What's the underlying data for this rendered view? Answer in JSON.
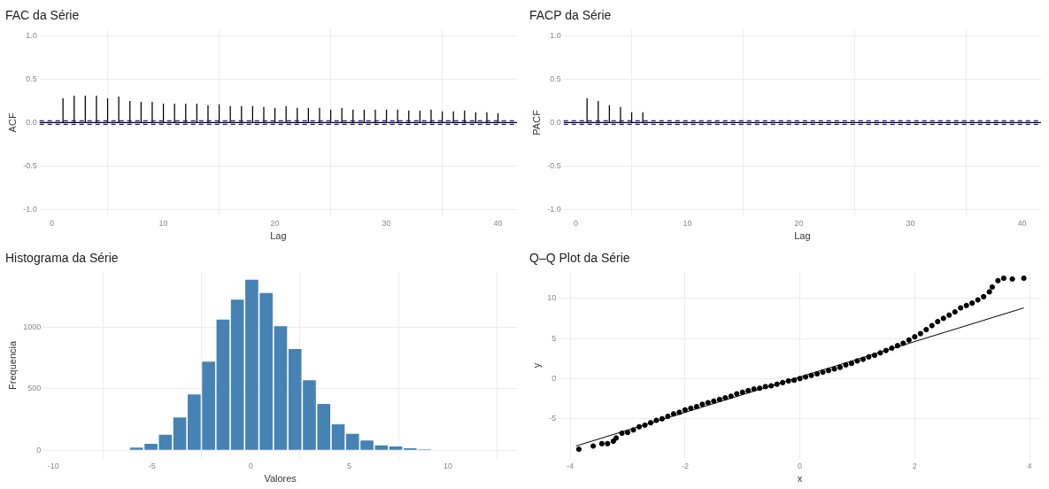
{
  "chart_data": [
    {
      "type": "bar",
      "title": "FAC da Série",
      "xlabel": "Lag",
      "ylabel": "ACF",
      "x": [
        1,
        2,
        3,
        4,
        5,
        6,
        7,
        8,
        9,
        10,
        11,
        12,
        13,
        14,
        15,
        16,
        17,
        18,
        19,
        20,
        21,
        22,
        23,
        24,
        25,
        26,
        27,
        28,
        29,
        30,
        31,
        32,
        33,
        34,
        35,
        36,
        37,
        38,
        39,
        40
      ],
      "values": [
        0.28,
        0.31,
        0.31,
        0.31,
        0.28,
        0.3,
        0.25,
        0.24,
        0.24,
        0.22,
        0.22,
        0.22,
        0.22,
        0.2,
        0.21,
        0.19,
        0.19,
        0.19,
        0.18,
        0.17,
        0.19,
        0.17,
        0.17,
        0.17,
        0.15,
        0.17,
        0.15,
        0.15,
        0.15,
        0.15,
        0.15,
        0.14,
        0.14,
        0.15,
        0.13,
        0.13,
        0.14,
        0.12,
        0.12,
        0.11
      ],
      "color": "#000000",
      "xlim": [
        -1.1,
        41.7
      ],
      "xticks": [
        0,
        10,
        20,
        30,
        40
      ],
      "ylim": [
        -1.08,
        1.08
      ],
      "yticks": [
        {
          "value": -1,
          "label": "-1.0"
        },
        {
          "value": -0.5,
          "label": "-0.5"
        },
        {
          "value": 0,
          "label": "0.0"
        },
        {
          "value": 0.5,
          "label": "0.5"
        },
        {
          "value": 1,
          "label": "1.0"
        }
      ],
      "ref_lines": [
        {
          "axis": "y",
          "value": 0,
          "color": "#000000",
          "line_style": "solid"
        },
        {
          "axis": "y",
          "value": 0.02,
          "color": "#1a1aa6",
          "line_style": "dashed"
        },
        {
          "axis": "y",
          "value": -0.02,
          "color": "#1a1aa6",
          "line_style": "dashed"
        }
      ],
      "grid": true
    },
    {
      "type": "bar",
      "title": "FACP da Série",
      "xlabel": "Lag",
      "ylabel": "PACF",
      "x": [
        1,
        2,
        3,
        4,
        5,
        6,
        7,
        8,
        9,
        10,
        11,
        12,
        13,
        14,
        15,
        16,
        17,
        18,
        19,
        20,
        21,
        22,
        23,
        24,
        25,
        26,
        27,
        28,
        29,
        30,
        31,
        32,
        33,
        34,
        35,
        36,
        37,
        38,
        39,
        40
      ],
      "values": [
        0.28,
        0.25,
        0.2,
        0.18,
        0.12,
        0.12,
        0,
        0,
        0,
        0,
        0,
        0,
        0,
        0,
        0,
        0,
        0,
        0,
        0,
        0,
        0,
        0,
        0,
        0,
        0,
        0,
        0,
        0,
        0,
        0,
        0,
        0,
        0,
        0,
        0,
        0,
        0,
        0,
        0,
        0
      ],
      "color": "#000000",
      "xlim": [
        -1.1,
        41.7
      ],
      "xticks": [
        0,
        10,
        20,
        30,
        40
      ],
      "ylim": [
        -1.08,
        1.08
      ],
      "yticks": [
        {
          "value": -1,
          "label": "-1.0"
        },
        {
          "value": -0.5,
          "label": "-0.5"
        },
        {
          "value": 0,
          "label": "0.0"
        },
        {
          "value": 0.5,
          "label": "0.5"
        },
        {
          "value": 1,
          "label": "1.0"
        }
      ],
      "ref_lines": [
        {
          "axis": "y",
          "value": 0,
          "color": "#000000",
          "line_style": "solid"
        },
        {
          "axis": "y",
          "value": 0.02,
          "color": "#1a1aa6",
          "line_style": "dashed"
        },
        {
          "axis": "y",
          "value": -0.02,
          "color": "#1a1aa6",
          "line_style": "dashed"
        }
      ],
      "grid": true
    },
    {
      "type": "histogram",
      "title": "Histograma da Série",
      "xlabel": "Valores",
      "ylabel": "Frequencia",
      "bins": [
        -6.15,
        -5.42,
        -4.69,
        -3.96,
        -3.23,
        -2.5,
        -1.77,
        -1.04,
        -0.31,
        0.42,
        1.15,
        1.88,
        2.61,
        3.34,
        4.07,
        4.8,
        5.53,
        6.26,
        6.99,
        7.72,
        8.45,
        9.18
      ],
      "values": [
        22,
        53,
        127,
        266,
        454,
        720,
        1061,
        1224,
        1385,
        1277,
        1008,
        823,
        568,
        377,
        211,
        133,
        80,
        39,
        30,
        17,
        8
      ],
      "color": "#4682b4",
      "xlim": [
        -10.5,
        13.5
      ],
      "xticks": [
        -10,
        -5,
        0,
        5,
        10
      ],
      "ylim": [
        -70,
        1450
      ],
      "yticks": [
        0,
        500,
        1000
      ],
      "grid": true
    },
    {
      "type": "scatter",
      "title": "Q–Q Plot da Série",
      "xlabel": "x",
      "ylabel": "y",
      "series": [
        {
          "color": "#000000",
          "marker": "circle",
          "x": [
            -3.85,
            -3.6,
            -3.45,
            -3.35,
            -3.25,
            -3.2,
            -3.1,
            -3.0,
            -2.9,
            -2.8,
            -2.7,
            -2.6,
            -2.5,
            -2.4,
            -2.3,
            -2.2,
            -2.1,
            -2.0,
            -1.9,
            -1.8,
            -1.7,
            -1.6,
            -1.5,
            -1.4,
            -1.3,
            -1.2,
            -1.1,
            -1.0,
            -0.9,
            -0.8,
            -0.7,
            -0.6,
            -0.5,
            -0.4,
            -0.3,
            -0.2,
            -0.1,
            0,
            0.1,
            0.2,
            0.3,
            0.4,
            0.5,
            0.6,
            0.7,
            0.8,
            0.9,
            1.0,
            1.1,
            1.2,
            1.3,
            1.4,
            1.5,
            1.6,
            1.7,
            1.8,
            1.9,
            2.0,
            2.1,
            2.2,
            2.3,
            2.4,
            2.5,
            2.6,
            2.7,
            2.8,
            2.9,
            3.0,
            3.1,
            3.2,
            3.3,
            3.35,
            3.45,
            3.55,
            3.7,
            3.9
          ],
          "values": [
            -8.8,
            -8.4,
            -8.1,
            -8.1,
            -7.8,
            -7.4,
            -6.8,
            -6.7,
            -6.4,
            -6.0,
            -5.8,
            -5.5,
            -5.2,
            -5.0,
            -4.7,
            -4.4,
            -4.2,
            -3.9,
            -3.7,
            -3.5,
            -3.2,
            -3.0,
            -2.8,
            -2.6,
            -2.4,
            -2.2,
            -1.9,
            -1.7,
            -1.5,
            -1.3,
            -1.2,
            -1.0,
            -0.9,
            -0.7,
            -0.5,
            -0.3,
            -0.2,
            0,
            0.2,
            0.4,
            0.6,
            0.8,
            1.0,
            1.2,
            1.4,
            1.7,
            1.9,
            2.2,
            2.4,
            2.7,
            2.9,
            3.2,
            3.5,
            3.8,
            4.1,
            4.4,
            4.8,
            5.2,
            5.6,
            6.1,
            6.6,
            7.1,
            7.5,
            7.9,
            8.3,
            8.8,
            9.1,
            9.4,
            9.8,
            10.2,
            10.8,
            11.4,
            12.2,
            12.5,
            12.4,
            12.5
          ]
        },
        {
          "type": "line",
          "color": "#000000",
          "x": [
            -3.9,
            3.9
          ],
          "values": [
            -8.4,
            8.8
          ]
        }
      ],
      "xlim": [
        -4.2,
        4.2
      ],
      "xticks": [
        -4,
        -2,
        0,
        2,
        4
      ],
      "ylim": [
        -10,
        13.3
      ],
      "yticks": [
        -5,
        0,
        5,
        10
      ],
      "grid": true
    }
  ]
}
